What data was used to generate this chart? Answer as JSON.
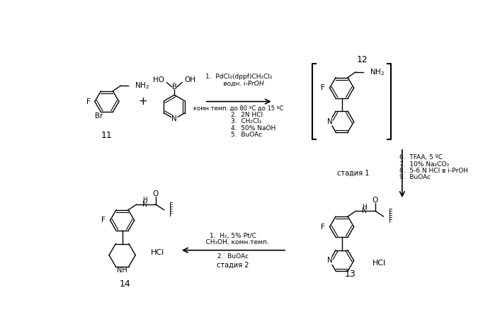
{
  "background_color": "#ffffff",
  "text_color": "#000000",
  "step1_line1": "1.  PdCl₂(dppf)CH₂Cl₂",
  "step1_line2": "     водн. i-PrOH",
  "step1_line3": "комн.темп. до 80 ºC до 15 ºC",
  "step1_line4": "2.  2N HCl",
  "step1_line5": "3.  CH₂Cl₂",
  "step1_line6": "4.  50% NaOH",
  "step1_line7": "5.  BuOAc",
  "step2_line1": "6.  TFAA, 5 ºC",
  "step2_line2": "7.  10% Na₂CO₃",
  "step2_line3": "8.  5-6 N HCl в i-PrOH",
  "step2_line4": "9.  BuOAc",
  "step3_line1": "1.  H₂, 5% Pt/C",
  "step3_line2": "    CH₃OH, комн.темп.",
  "step3_line3": "2.  BuOAc",
  "stage1": "стадия 1",
  "stage2": "стадия 2",
  "num11": "11",
  "num12": "12",
  "num13": "13",
  "num14": "14"
}
